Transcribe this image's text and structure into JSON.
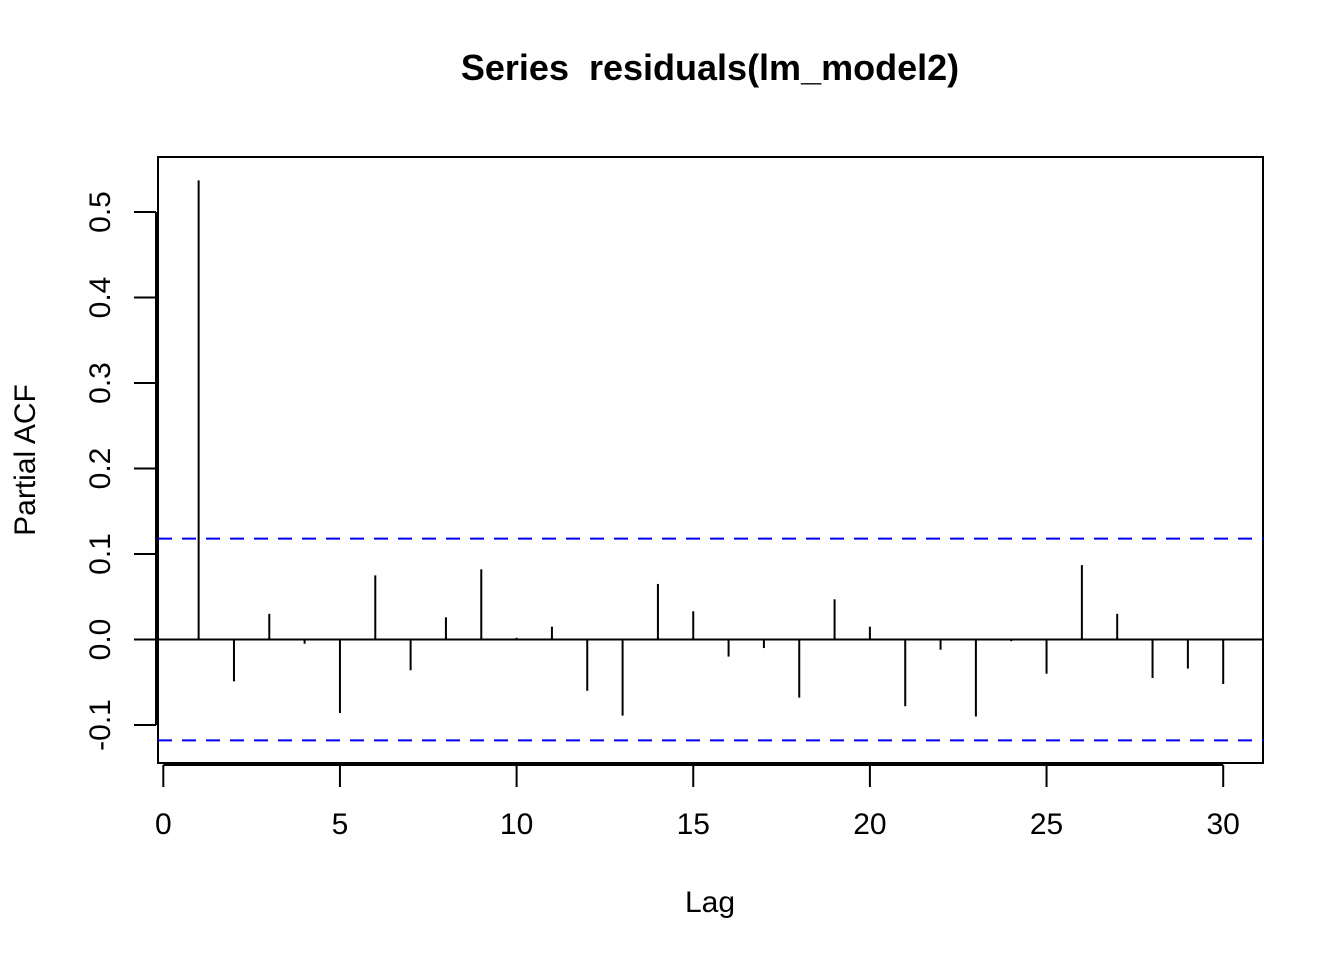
{
  "chart_data": {
    "type": "bar",
    "title": "Series  residuals(lm_model2)",
    "xlabel": "Lag",
    "ylabel": "Partial ACF",
    "x": [
      1,
      2,
      3,
      4,
      5,
      6,
      7,
      8,
      9,
      10,
      11,
      12,
      13,
      14,
      15,
      16,
      17,
      18,
      19,
      20,
      21,
      22,
      23,
      24,
      25,
      26,
      27,
      28,
      29,
      30
    ],
    "values": [
      0.537,
      -0.049,
      0.03,
      -0.005,
      -0.086,
      0.075,
      -0.036,
      0.026,
      0.082,
      0.002,
      0.015,
      -0.06,
      -0.089,
      0.065,
      0.033,
      -0.02,
      -0.01,
      -0.068,
      0.047,
      0.015,
      -0.078,
      -0.012,
      -0.09,
      -0.002,
      -0.04,
      0.087,
      0.03,
      -0.045,
      -0.034,
      -0.052
    ],
    "confidence_limit": 0.118,
    "xlim": [
      0,
      31
    ],
    "ylim": [
      -0.145,
      0.575
    ],
    "x_ticks": [
      0,
      5,
      10,
      15,
      20,
      25,
      30
    ],
    "x_tick_labels": [
      "0",
      "5",
      "10",
      "15",
      "20",
      "25",
      "30"
    ],
    "y_ticks": [
      -0.1,
      0.0,
      0.1,
      0.2,
      0.3,
      0.4,
      0.5
    ],
    "y_tick_labels": [
      "-0.1",
      "0.0",
      "0.1",
      "0.2",
      "0.3",
      "0.4",
      "0.5"
    ],
    "grid": false,
    "colors": {
      "bars": "#000000",
      "confidence_lines": "#0000ff",
      "frame": "#000000"
    }
  }
}
